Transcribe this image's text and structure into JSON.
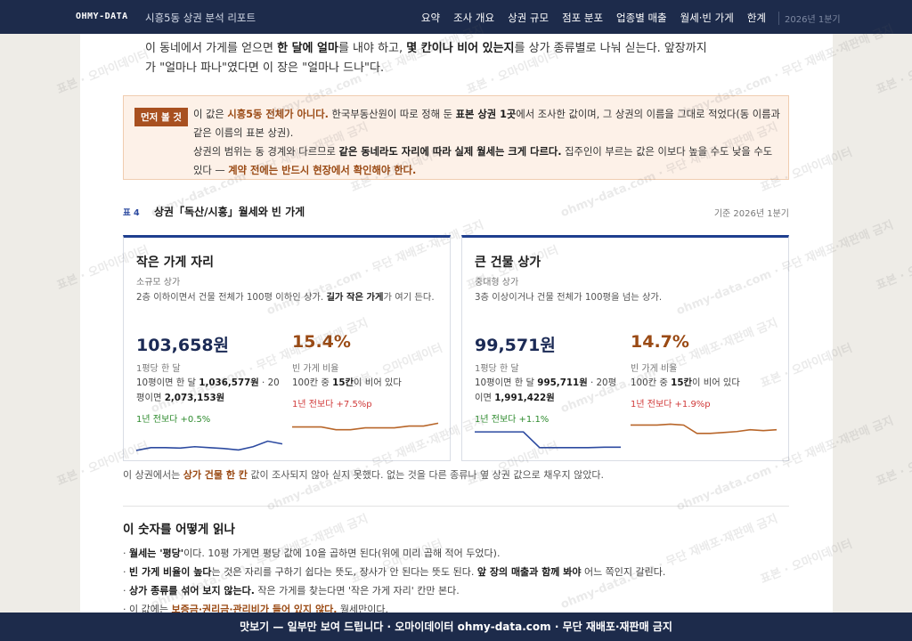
{
  "nav": {
    "brand": "OHMY-DATA",
    "title": "시흥5동 상권 분석 리포트",
    "links": [
      "요약",
      "조사 개요",
      "상권 규모",
      "점포 분포",
      "업종별 매출",
      "월세·빈 가게",
      "한계"
    ],
    "period": "2026년 1분기"
  },
  "intro": [
    {
      "t": "이 동네에서 가게를 얻으면 "
    },
    {
      "t": "한 달에 얼마",
      "em": "bold"
    },
    {
      "t": "를 내야 하고, "
    },
    {
      "t": "몇 칸이나 비어 있는지",
      "em": "bold"
    },
    {
      "t": "를 상가 종류별로 나눠 싣는다. 앞장까지가 \"얼마나 파나\"였다면 이 장은 \"얼마나 드나\"다."
    }
  ],
  "callout": {
    "badge": "먼저 볼 것",
    "lines": [
      [
        {
          "t": "이 값은 "
        },
        {
          "t": "시흥5동 전체가 아니다.",
          "em": "accent"
        },
        {
          "t": " 한국부동산원이 따로 정해 둔 "
        },
        {
          "t": "표본 상권 1곳",
          "em": "bold"
        },
        {
          "t": "에서 조사한 값이며, 그 상권의 이름을 그대로 적었다(동 이름과 같은 이름의 표본 상권)."
        }
      ],
      [
        {
          "t": "상권의 범위는 동 경계와 다르므로 "
        },
        {
          "t": "같은 동네라도 자리에 따라 실제 월세는 크게 다르다.",
          "em": "bold"
        },
        {
          "t": " 집주인이 부르는 값은 이보다 높을 수도 낮을 수도 있다 — "
        },
        {
          "t": "계약 전에는 반드시 현장에서 확인해야 한다.",
          "em": "accent"
        }
      ]
    ]
  },
  "table": {
    "label": "표 4",
    "title": "상권「독산/시흥」월세와 빈 가게",
    "basis": "기준 2026년 1분기",
    "cards": [
      {
        "title": "작은 가게 자리",
        "subtitle": "소규모 상가",
        "desc": [
          {
            "t": "2층 이하이면서 건물 전체가 100평 이하인 상가. "
          },
          {
            "t": "길가 작은 가게",
            "em": "bold"
          },
          {
            "t": "가 여기 든다."
          }
        ],
        "price": "103,658원",
        "price_label": "1평당 한 달",
        "price_detail": [
          {
            "t": "10평이면 한 달 "
          },
          {
            "t": "1,036,577원",
            "em": "bold"
          },
          {
            "t": " · 20평이면 "
          },
          {
            "t": "2,073,153원",
            "em": "bold"
          }
        ],
        "price_change": "1년 전보다 +0.5%",
        "price_change_color": "#2e8b2e",
        "price_trend": {
          "values": [
            2,
            5,
            5,
            4.5,
            6,
            5,
            4,
            2.5,
            6,
            12,
            9
          ],
          "ylim": [
            0,
            25
          ],
          "color": "#2c4aa0"
        },
        "vacancy": "15.4%",
        "vacancy_label": "빈 가게 비율",
        "vacancy_detail": [
          {
            "t": "100칸 중 "
          },
          {
            "t": "15칸",
            "em": "bold"
          },
          {
            "t": "이 비어 있다"
          }
        ],
        "vacancy_change": "1년 전보다 +7.5%p",
        "vacancy_change_color": "#d03a3a",
        "vacancy_trend": {
          "values": [
            11,
            11,
            11,
            8,
            8,
            10,
            10,
            10,
            12,
            12,
            15
          ],
          "ylim": [
            0,
            25
          ],
          "color": "#b8662a"
        }
      },
      {
        "title": "큰 건물 상가",
        "subtitle": "중대형 상가",
        "desc": [
          {
            "t": "3층 이상이거나 건물 전체가 100평을 넘는 상가."
          }
        ],
        "price": "99,571원",
        "price_label": "1평당 한 달",
        "price_detail": [
          {
            "t": "10평이면 한 달 "
          },
          {
            "t": "995,711원",
            "em": "bold"
          },
          {
            "t": " · 20평이면 "
          },
          {
            "t": "1,991,422원",
            "em": "bold"
          }
        ],
        "price_change": "1년 전보다 +1.1%",
        "price_change_color": "#2e8b2e",
        "price_trend": {
          "values": [
            22,
            22,
            22,
            22,
            5,
            5,
            5,
            5,
            5.5,
            5.5
          ],
          "ylim": [
            0,
            25
          ],
          "color": "#2c4aa0"
        },
        "vacancy": "14.7%",
        "vacancy_label": "빈 가게 비율",
        "vacancy_detail": [
          {
            "t": "100칸 중 "
          },
          {
            "t": "15칸",
            "em": "bold"
          },
          {
            "t": "이 비어 있다"
          }
        ],
        "vacancy_change": "1년 전보다 +1.9%p",
        "vacancy_change_color": "#d03a3a",
        "vacancy_trend": {
          "values": [
            13,
            13,
            13,
            14,
            13,
            4,
            4,
            5,
            6,
            8,
            7,
            8
          ],
          "ylim": [
            0,
            25
          ],
          "color": "#b8662a"
        }
      }
    ]
  },
  "note": [
    {
      "t": "이 상권에서는 "
    },
    {
      "t": "상가 건물 한 칸",
      "em": "accent"
    },
    {
      "t": " 값이 조사되지 않아 싣지 못했다. 없는 것을 다른 종류나 옆 상권 값으로 채우지 않았다."
    }
  ],
  "howto": {
    "heading": "이 숫자를 어떻게 읽나",
    "items": [
      [
        {
          "t": "· "
        },
        {
          "t": "월세는 '평당'",
          "em": "bold"
        },
        {
          "t": "이다. 10평 가게면 평당 값에 10을 곱하면 된다(위에 미리 곱해 적어 두었다)."
        }
      ],
      [
        {
          "t": "· "
        },
        {
          "t": "빈 가게 비율이 높다",
          "em": "bold"
        },
        {
          "t": "는 것은 자리를 구하기 쉽다는 뜻도, 장사가 안 된다는 뜻도 된다. "
        },
        {
          "t": "앞 장의 매출과 함께 봐야",
          "em": "bold"
        },
        {
          "t": " 어느 쪽인지 갈린다."
        }
      ],
      [
        {
          "t": "· "
        },
        {
          "t": "상가 종류를 섞어 보지 않는다.",
          "em": "bold"
        },
        {
          "t": " 작은 가게를 찾는다면 '작은 가게 자리' 칸만 본다."
        }
      ],
      [
        {
          "t": "· 이 값에는 "
        },
        {
          "t": "보증금·권리금·관리비가 들어 있지 않다.",
          "em": "accent"
        },
        {
          "t": " 월세만이다."
        }
      ]
    ]
  },
  "footer": "맛보기 — 일부만 보여 드립니다 · 오마이데이터 ohmy-data.com · 무단 재배포·재판매 금지",
  "watermarks": [
    "표본 · 오마이데이터",
    "ohmy-data.com · 무단 재배포·재판매 금지"
  ]
}
